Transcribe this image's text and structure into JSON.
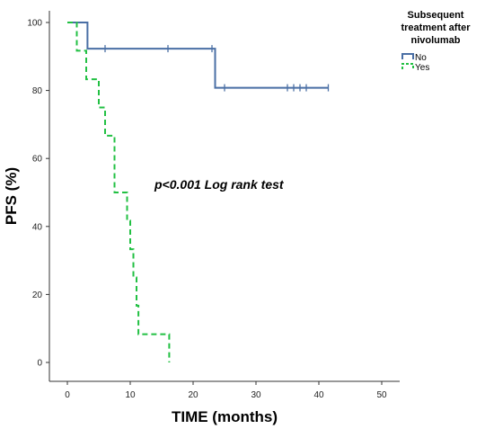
{
  "chart_data": {
    "type": "line",
    "step": true,
    "xlabel": "TIME (months)",
    "ylabel": "PFS (%)",
    "xlim": [
      0,
      50
    ],
    "ylim": [
      0,
      100
    ],
    "x_ticks": [
      0,
      10,
      20,
      30,
      40,
      50
    ],
    "y_ticks": [
      0,
      20,
      40,
      60,
      80,
      100
    ],
    "grid": false,
    "legend": {
      "title_lines": [
        "Subsequent",
        "treatment after",
        "nivolumab"
      ],
      "placement": "top-right"
    },
    "annotation": "p<0.001 Log rank test",
    "series": [
      {
        "name": "No",
        "color": "#4a6fa5",
        "dash": "solid",
        "steps": [
          {
            "x": 0,
            "y": 100
          },
          {
            "x": 3.2,
            "y": 92.3
          },
          {
            "x": 23.5,
            "y": 80.8
          },
          {
            "x": 41.5,
            "y": 80.8
          }
        ],
        "censored": [
          {
            "x": 6,
            "y": 92.3
          },
          {
            "x": 16,
            "y": 92.3
          },
          {
            "x": 23,
            "y": 92.3
          },
          {
            "x": 25,
            "y": 80.8
          },
          {
            "x": 35,
            "y": 80.8
          },
          {
            "x": 36,
            "y": 80.8
          },
          {
            "x": 37,
            "y": 80.8
          },
          {
            "x": 38,
            "y": 80.8
          },
          {
            "x": 41.5,
            "y": 80.8
          }
        ]
      },
      {
        "name": "Yes",
        "color": "#22c043",
        "dash": "dashed",
        "steps": [
          {
            "x": 0,
            "y": 100
          },
          {
            "x": 1.5,
            "y": 91.7
          },
          {
            "x": 3,
            "y": 83.3
          },
          {
            "x": 5,
            "y": 75
          },
          {
            "x": 6,
            "y": 66.7
          },
          {
            "x": 7.5,
            "y": 50
          },
          {
            "x": 9.5,
            "y": 41.7
          },
          {
            "x": 10,
            "y": 33.3
          },
          {
            "x": 10.5,
            "y": 25
          },
          {
            "x": 11,
            "y": 16.7
          },
          {
            "x": 11.3,
            "y": 8.3
          },
          {
            "x": 16.2,
            "y": 0
          }
        ],
        "censored": []
      }
    ]
  }
}
